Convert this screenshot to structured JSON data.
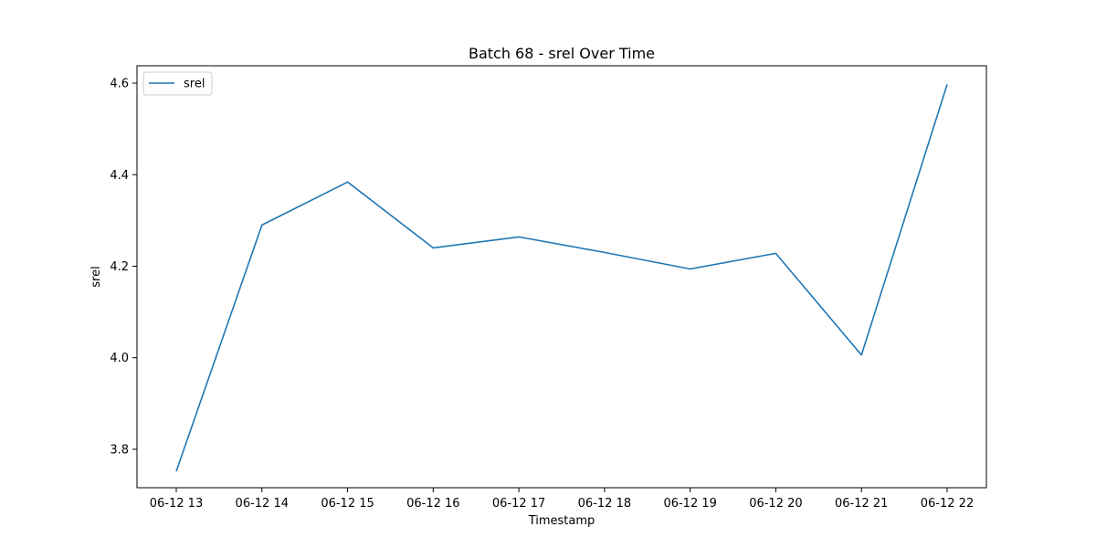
{
  "chart_data": {
    "type": "line",
    "title": "Batch 68 - srel Over Time",
    "xlabel": "Timestamp",
    "ylabel": "srel",
    "x": [
      "06-12 13",
      "06-12 14",
      "06-12 15",
      "06-12 16",
      "06-12 17",
      "06-12 18",
      "06-12 19",
      "06-12 20",
      "06-12 21",
      "06-12 22"
    ],
    "series": [
      {
        "name": "srel",
        "color": "#1f77b4",
        "values": [
          3.752,
          4.29,
          4.384,
          4.24,
          4.264,
          4.23,
          4.194,
          4.228,
          4.006,
          4.597
        ]
      }
    ],
    "yticks": [
      "3.8",
      "4.0",
      "4.2",
      "4.4",
      "4.6"
    ],
    "ylim": [
      3.716,
      4.638
    ],
    "grid": false,
    "legend": "upper-left"
  }
}
